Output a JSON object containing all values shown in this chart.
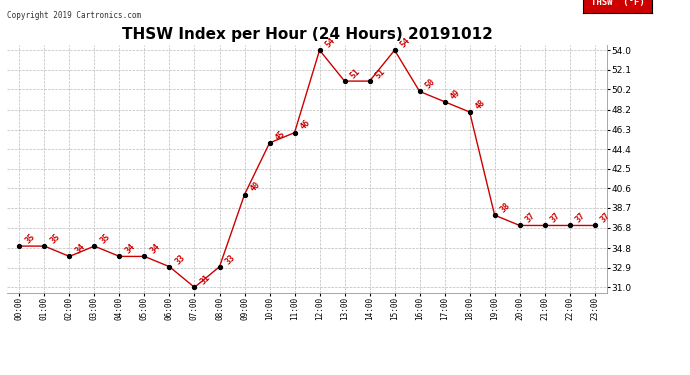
{
  "title": "THSW Index per Hour (24 Hours) 20191012",
  "copyright": "Copyright 2019 Cartronics.com",
  "legend_label": "THSW  (°F)",
  "hours": [
    0,
    1,
    2,
    3,
    4,
    5,
    6,
    7,
    8,
    9,
    10,
    11,
    12,
    13,
    14,
    15,
    16,
    17,
    18,
    19,
    20,
    21,
    22,
    23
  ],
  "values": [
    35,
    35,
    34,
    35,
    34,
    34,
    33,
    31,
    33,
    40,
    45,
    46,
    54,
    51,
    51,
    54,
    50,
    49,
    48,
    38,
    37,
    37,
    37,
    37
  ],
  "x_labels": [
    "00:00",
    "01:00",
    "02:00",
    "03:00",
    "04:00",
    "05:00",
    "06:00",
    "07:00",
    "08:00",
    "09:00",
    "10:00",
    "11:00",
    "12:00",
    "13:00",
    "14:00",
    "15:00",
    "16:00",
    "17:00",
    "18:00",
    "19:00",
    "20:00",
    "21:00",
    "22:00",
    "23:00"
  ],
  "y_ticks": [
    31.0,
    32.9,
    34.8,
    36.8,
    38.7,
    40.6,
    42.5,
    44.4,
    46.3,
    48.2,
    50.2,
    52.1,
    54.0
  ],
  "ylim": [
    30.5,
    54.5
  ],
  "line_color": "#cc0000",
  "marker_color": "#000000",
  "grid_color": "#bbbbbb",
  "bg_color": "#ffffff",
  "title_fontsize": 11,
  "annotation_fontsize": 6,
  "legend_bg": "#cc0000",
  "legend_text_color": "#ffffff"
}
